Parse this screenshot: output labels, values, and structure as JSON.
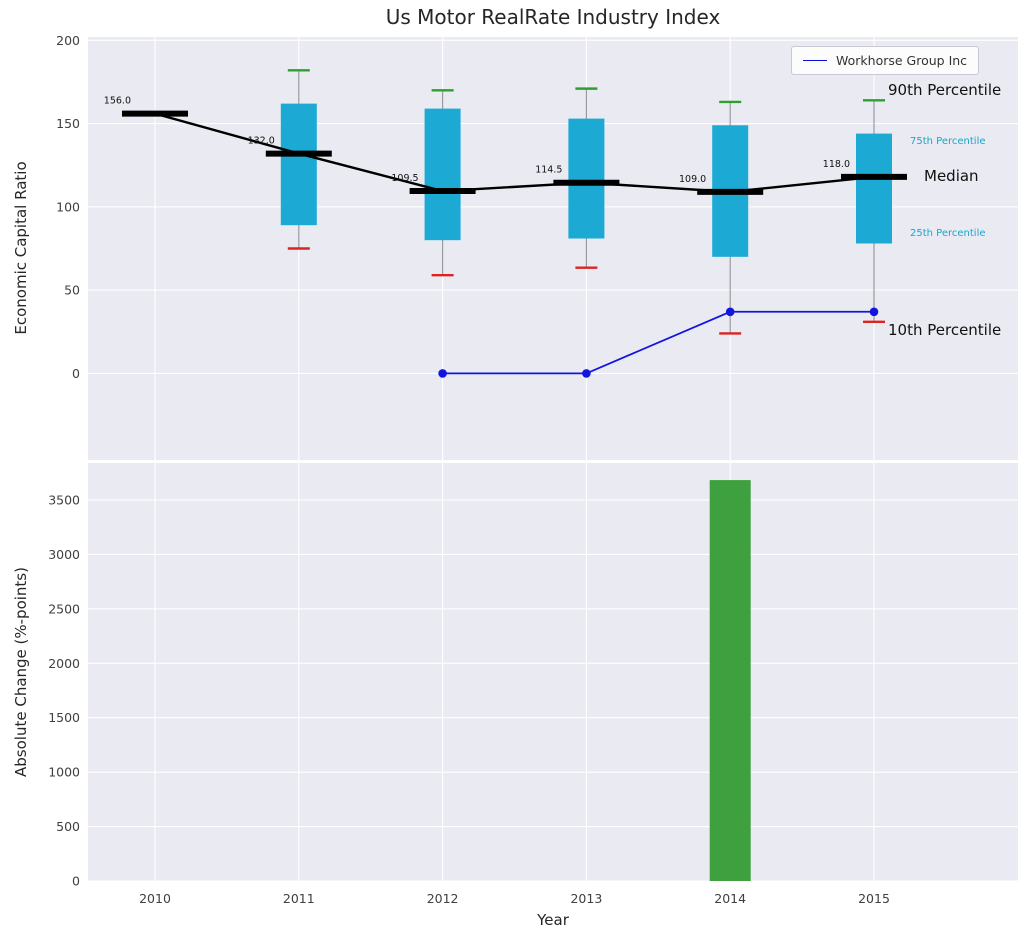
{
  "title": "Us Motor RealRate Industry Index",
  "legend": {
    "label": "Workhorse Group Inc",
    "color": "#0d0dcf"
  },
  "annotations": [
    {
      "id": "p90",
      "label": "90th Percentile",
      "color": "#111111",
      "size": 15
    },
    {
      "id": "p75",
      "label": "75th Percentile",
      "color": "#18a6cb",
      "size": 10
    },
    {
      "id": "median",
      "label": "Median",
      "color": "#111111",
      "size": 15
    },
    {
      "id": "p25",
      "label": "25th Percentile",
      "color": "#18a6cb",
      "size": 10
    },
    {
      "id": "p10",
      "label": "10th Percentile",
      "color": "#111111",
      "size": 15
    }
  ],
  "chart_data": [
    {
      "type": "boxwhisker+line",
      "title": "Us Motor RealRate Industry Index",
      "ylabel": "Economic Capital Ratio",
      "x": [
        2010,
        2011,
        2012,
        2013,
        2014,
        2015
      ],
      "yticks": [
        0,
        50,
        100,
        150,
        200
      ],
      "ylim": [
        -52,
        202
      ],
      "grid": true,
      "box_color": "#1ca9d4",
      "cap_top_color": "#2e9e2e",
      "cap_bottom_color": "#dd2222",
      "whisker_color": "#9a9a9a",
      "median_color": "#000000",
      "series": [
        {
          "name": "90th Percentile",
          "values": [
            null,
            182,
            170,
            171,
            163,
            164
          ]
        },
        {
          "name": "75th Percentile",
          "values": [
            null,
            162,
            159,
            153,
            149,
            144
          ]
        },
        {
          "name": "Median",
          "values": [
            156,
            132,
            109.5,
            114.5,
            109,
            118
          ]
        },
        {
          "name": "25th Percentile",
          "values": [
            null,
            89,
            80,
            81,
            70,
            78
          ]
        },
        {
          "name": "10th Percentile",
          "values": [
            null,
            75,
            59,
            63.5,
            24,
            31
          ]
        },
        {
          "name": "Workhorse Group Inc",
          "values": [
            null,
            null,
            0,
            0,
            37,
            37
          ],
          "type": "line",
          "color": "#1414e0"
        }
      ],
      "median_labels": [
        "156.0",
        "132.0",
        "109.5",
        "114.5",
        "109.0",
        "118.0"
      ],
      "legend_position": "upper right"
    },
    {
      "type": "bar",
      "ylabel": "Absolute Change (%-points)",
      "xlabel": "Year",
      "x": [
        2010,
        2011,
        2012,
        2013,
        2014,
        2015
      ],
      "xticklabels": [
        "2010",
        "2011",
        "2012",
        "2013",
        "2014",
        "2015"
      ],
      "yticks": [
        0,
        500,
        1000,
        1500,
        2000,
        2500,
        3000,
        3500
      ],
      "ylim": [
        0,
        3840
      ],
      "grid": true,
      "bar_color": "#3fa03f",
      "values": [
        null,
        null,
        null,
        null,
        3683,
        null
      ]
    }
  ]
}
